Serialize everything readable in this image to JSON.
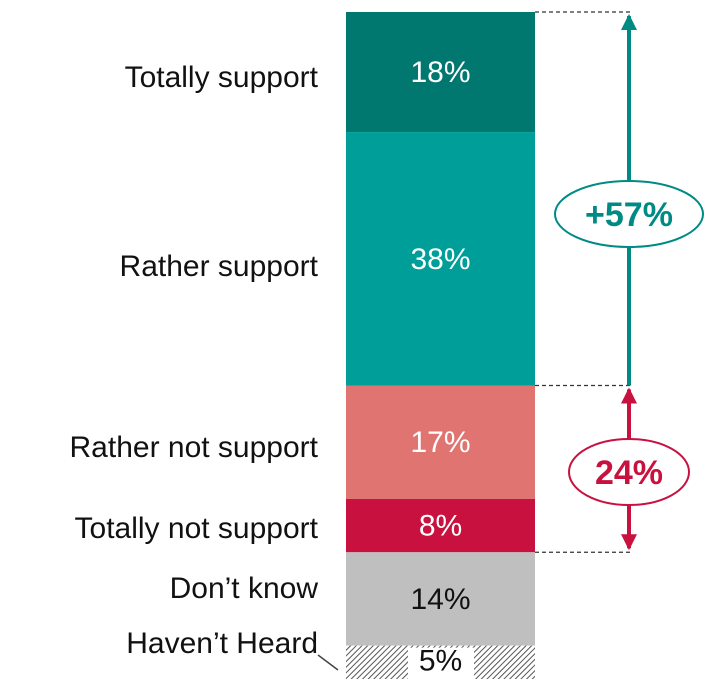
{
  "chart_data": {
    "type": "bar",
    "subtype": "stacked-single-column",
    "categories": [
      "Totally support",
      "Rather support",
      "Rather not support",
      "Totally not support",
      "Don’t know",
      "Haven’t Heard"
    ],
    "values": [
      18,
      38,
      17,
      8,
      14,
      5
    ],
    "value_labels": [
      "18%",
      "38%",
      "17%",
      "8%",
      "14%",
      "5%"
    ],
    "colors": [
      "#00786f",
      "#009e98",
      "#e07470",
      "#c8113f",
      "#bfbfbf",
      "#ffffff"
    ],
    "pattern": {
      "Haven’t Heard": "diagonal-hatch"
    },
    "annotations": [
      {
        "label": "+57%",
        "spans": [
          "Totally support",
          "Rather support"
        ],
        "color": "#008a84"
      },
      {
        "label": "24%",
        "spans": [
          "Rather not support",
          "Totally not support"
        ],
        "color": "#c8113f"
      }
    ],
    "title": "",
    "xlabel": "",
    "ylabel": "",
    "grid": false,
    "legend": "none"
  }
}
